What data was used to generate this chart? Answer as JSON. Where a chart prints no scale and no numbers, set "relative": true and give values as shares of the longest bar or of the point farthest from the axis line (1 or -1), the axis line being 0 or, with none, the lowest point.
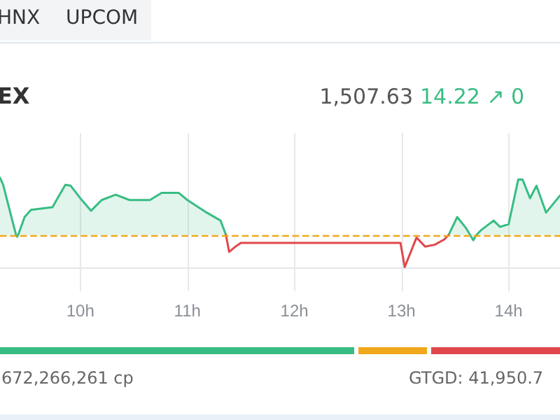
{
  "chart_data": {
    "type": "area",
    "title": "EX",
    "relative": true,
    "annotations": [
      "HNX",
      "UPCOM",
      "1,507.63",
      "14.22 ↗ 0",
      "672,266,261 cp",
      "GTGD: 41,950.7"
    ],
    "x": [
      9.25,
      9.28,
      9.35,
      9.4,
      9.41,
      9.42,
      9.48,
      9.54,
      9.74,
      9.86,
      9.91,
      10.0,
      10.1,
      10.2,
      10.33,
      10.46,
      10.65,
      10.76,
      10.92,
      11.0,
      11.18,
      11.31,
      11.36,
      11.39,
      11.45,
      11.5,
      12.99,
      13.03,
      13.14,
      13.22,
      13.31,
      13.4,
      13.44,
      13.52,
      13.6,
      13.64,
      13.67,
      13.7,
      13.74,
      13.86,
      13.92,
      14.0,
      14.09,
      14.13,
      14.2,
      14.26,
      14.35,
      14.48
    ],
    "series": [
      {
        "color": "#37bd83",
        "values": [
          1.0,
          0.92,
          0.59,
          0.36,
          0.34,
          0.36,
          0.56,
          0.64,
          0.67,
          0.92,
          0.91,
          0.77,
          0.63,
          0.75,
          0.81,
          0.75,
          0.75,
          0.83,
          0.83,
          0.75,
          0.61,
          0.52,
          0.36,
          null,
          null,
          null,
          null,
          null,
          null,
          null,
          null,
          null,
          0.36,
          0.56,
          0.44,
          0.36,
          0.3,
          0.36,
          0.41,
          0.52,
          0.45,
          0.48,
          0.98,
          0.98,
          0.77,
          0.91,
          0.61,
          0.8
        ]
      },
      {
        "type": "line",
        "color": "#e0474c",
        "values": [
          null,
          null,
          null,
          null,
          null,
          null,
          null,
          null,
          null,
          null,
          null,
          null,
          null,
          null,
          null,
          null,
          null,
          null,
          null,
          null,
          null,
          null,
          0.36,
          0.17,
          0.23,
          0.27,
          0.27,
          0.0,
          0.33,
          0.23,
          0.25,
          0.31,
          0.36,
          null,
          null,
          null,
          null,
          null,
          null,
          null,
          null,
          null,
          null,
          null,
          null,
          null,
          null,
          null
        ]
      }
    ],
    "xlim": [
      9.25,
      14.48
    ],
    "xticks": [
      {
        "value": 10,
        "label": "10h"
      },
      {
        "value": 11,
        "label": "11h"
      },
      {
        "value": 12,
        "label": "12h"
      },
      {
        "value": 13,
        "label": "13h"
      },
      {
        "value": 14,
        "label": "14h"
      }
    ],
    "grid": "x",
    "ref_lines": [
      {
        "axis": "y",
        "value": 0.36,
        "color": "#f0a81c",
        "line_style": "dashed"
      }
    ]
  }
}
